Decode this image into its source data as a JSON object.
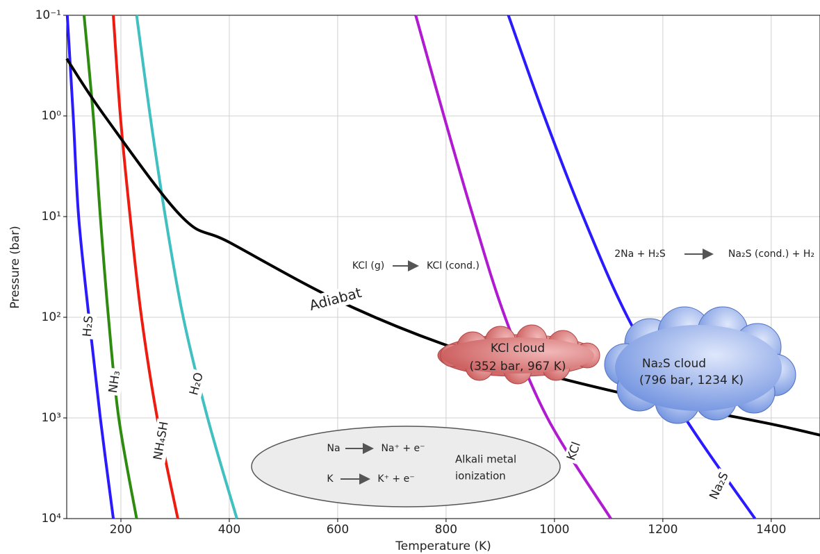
{
  "chart_data": {
    "type": "line",
    "x_label": "Temperature (K)",
    "y_label": "Pressure (bar)",
    "xlim": [
      100,
      1490
    ],
    "xticks": [
      200,
      400,
      600,
      800,
      1000,
      1200,
      1400
    ],
    "ylim": [
      0.1,
      10000
    ],
    "y_log": true,
    "y_inverted": true,
    "yticks": [
      {
        "value": 0.1,
        "label": "10⁻¹"
      },
      {
        "value": 1,
        "label": "10⁰"
      },
      {
        "value": 10,
        "label": "10¹"
      },
      {
        "value": 100,
        "label": "10²"
      },
      {
        "value": 1000,
        "label": "10³"
      },
      {
        "value": 10000,
        "label": "10⁴"
      }
    ],
    "grid": true,
    "series": [
      {
        "name": "H₂S",
        "color": "#2a1aff",
        "x": [
          101,
          112,
          122,
          141,
          162,
          186
        ],
        "values": [
          0.1,
          1,
          10,
          100,
          1000,
          10000
        ]
      },
      {
        "name": "NH₃",
        "color": "#2e8b10",
        "x": [
          132,
          149,
          162,
          177,
          196,
          229
        ],
        "values": [
          0.1,
          1,
          10,
          100,
          1000,
          10000
        ]
      },
      {
        "name": "NH₄SH",
        "color": "#ee1c10",
        "x": [
          186,
          199,
          217,
          238,
          267,
          305
        ],
        "values": [
          0.1,
          1,
          10,
          100,
          1000,
          10000
        ]
      },
      {
        "name": "H₂O",
        "color": "#40c0c0",
        "x": [
          229,
          254,
          282,
          315,
          360,
          414
        ],
        "values": [
          0.1,
          1,
          10,
          100,
          1000,
          10000
        ]
      },
      {
        "name": "KCl",
        "color": "#b01ad0",
        "x": [
          744,
          796,
          850,
          909,
          987,
          1104
        ],
        "values": [
          0.1,
          1,
          10,
          100,
          1000,
          10000
        ]
      },
      {
        "name": "Na₂S",
        "color": "#2a1aff",
        "x": [
          915,
          981,
          1053,
          1135,
          1241,
          1370
        ],
        "values": [
          0.1,
          1,
          10,
          100,
          1000,
          10000
        ]
      },
      {
        "name": "Adiabat",
        "color": "#000000",
        "x": [
          100,
          170,
          312,
          400,
          600,
          800,
          1000,
          1200,
          1400,
          1490
        ],
        "values": [
          0.27,
          1,
          10,
          18,
          68,
          189,
          390,
          700,
          1150,
          1480
        ]
      }
    ],
    "annotations": [
      "KCl (g)",
      "KCl (cond.)",
      "2Na + H₂S",
      "Na₂S (cond.) + H₂",
      "KCl cloud",
      "(352 bar, 967 K)",
      "Na₂S cloud",
      "(796 bar, 1234 K)",
      "Na",
      "Na⁺ + e⁻",
      "K",
      "K⁺ + e⁻",
      "Alkali metal",
      "ionization"
    ]
  }
}
